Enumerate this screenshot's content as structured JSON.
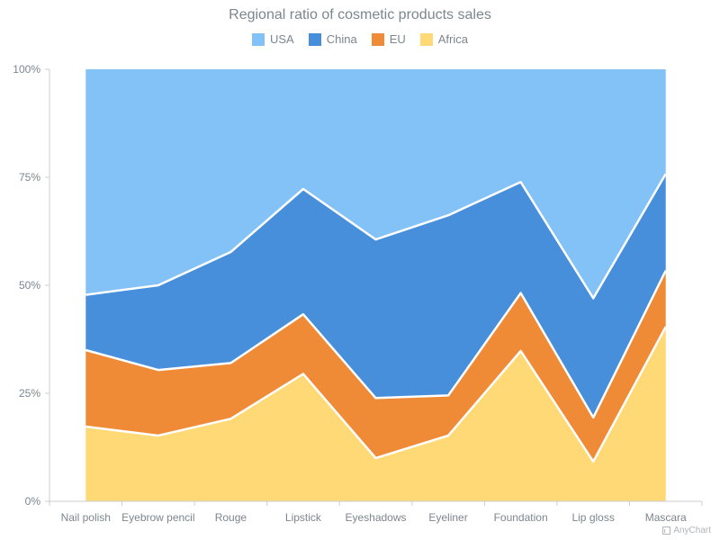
{
  "chart_data": {
    "type": "area",
    "stacking": "percent",
    "title": "Regional ratio of cosmetic products sales",
    "categories": [
      "Nail polish",
      "Eyebrow pencil",
      "Rouge",
      "Lipstick",
      "Eyeshadows",
      "Eyeliner",
      "Foundation",
      "Lip gloss",
      "Mascara"
    ],
    "series": [
      {
        "name": "Africa",
        "color": "#ffd975",
        "values": [
          17.3,
          15.2,
          19.1,
          29.5,
          10.0,
          15.2,
          34.8,
          9.2,
          40.4
        ]
      },
      {
        "name": "EU",
        "color": "#ef8a36",
        "values": [
          17.7,
          15.2,
          12.9,
          13.8,
          13.9,
          9.3,
          13.4,
          10.2,
          13.0
        ]
      },
      {
        "name": "China",
        "color": "#478fdb",
        "values": [
          12.8,
          19.6,
          25.7,
          29.0,
          36.7,
          41.7,
          25.7,
          27.6,
          22.4
        ]
      },
      {
        "name": "USA",
        "color": "#83c2f7",
        "values": [
          52.2,
          50.0,
          42.3,
          27.7,
          39.4,
          33.8,
          26.1,
          53.0,
          24.2
        ]
      }
    ],
    "legend_order": [
      "USA",
      "China",
      "EU",
      "Africa"
    ],
    "y_ticks": [
      "0%",
      "25%",
      "50%",
      "75%",
      "100%"
    ],
    "ylim": [
      0,
      100
    ],
    "grid": false,
    "legend_position": "top-center"
  },
  "credits": {
    "label": "AnyChart"
  }
}
